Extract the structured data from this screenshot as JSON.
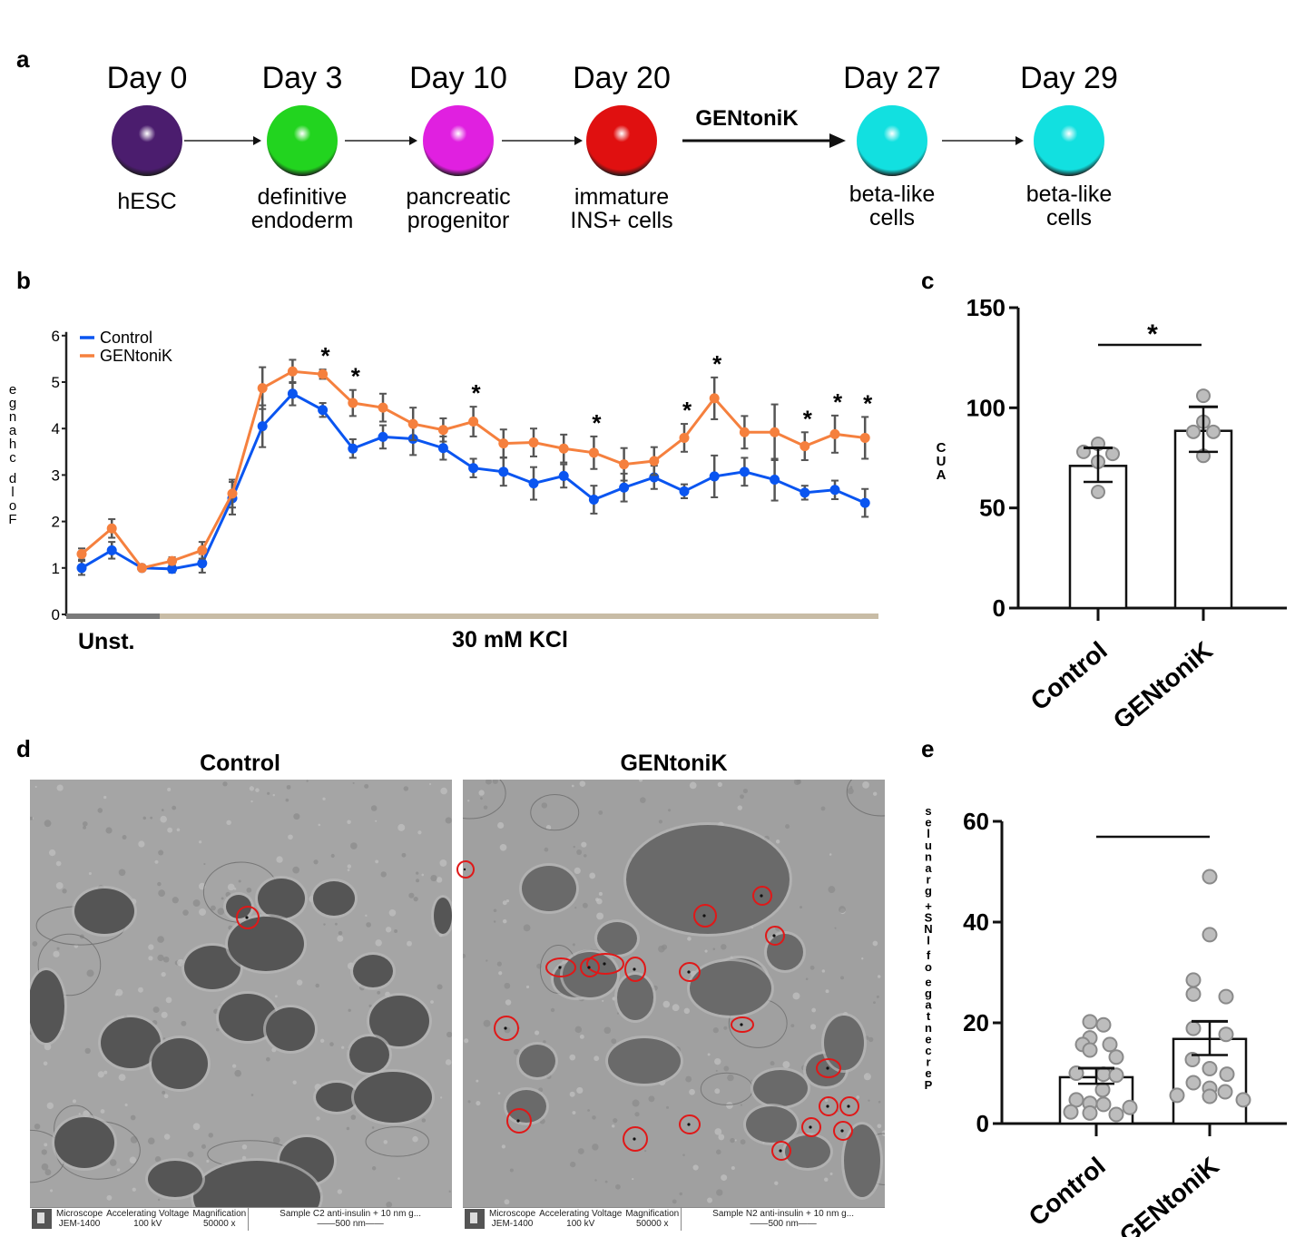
{
  "panel_a": {
    "letter": "a",
    "stages": [
      {
        "day": "Day 0",
        "label_lines": [
          "hESC"
        ],
        "color": "#4b1d6e"
      },
      {
        "day": "Day 3",
        "label_lines": [
          "definitive",
          "endoderm"
        ],
        "color": "#22d41f"
      },
      {
        "day": "Day 10",
        "label_lines": [
          "pancreatic",
          "progenitor"
        ],
        "color": "#e020e0"
      },
      {
        "day": "Day 20",
        "label_lines": [
          "immature",
          "INS+ cells"
        ],
        "color": "#e01010"
      },
      {
        "day": "Day 27",
        "label_lines": [
          "beta-like",
          "cells"
        ],
        "color": "#12e0e0"
      },
      {
        "day": "Day 29",
        "label_lines": [
          "beta-like",
          "cells"
        ],
        "color": "#12e0e0"
      }
    ],
    "treatment_label": "GENtoniK"
  },
  "chart_data": [
    {
      "panel": "b",
      "type": "line",
      "title": "",
      "ylabel": "Fold change",
      "ylabel_rendered": "egnahc dloF",
      "xlabel": "",
      "ylim": [
        0,
        6
      ],
      "yticks": [
        0,
        1,
        2,
        3,
        4,
        5,
        6
      ],
      "legend_position": "top-left",
      "x": [
        1,
        2,
        3,
        4,
        5,
        6,
        7,
        8,
        9,
        10,
        11,
        12,
        13,
        14,
        15,
        16,
        17,
        18,
        19,
        20,
        21,
        22,
        23,
        24,
        25,
        26,
        27
      ],
      "series": [
        {
          "name": "Control",
          "color": "#0a55f0",
          "values": [
            1.0,
            1.38,
            1.0,
            0.98,
            1.1,
            2.5,
            4.05,
            4.75,
            4.4,
            3.57,
            3.82,
            3.78,
            3.58,
            3.15,
            3.07,
            2.82,
            2.98,
            2.47,
            2.73,
            2.95,
            2.65,
            2.97,
            3.07,
            2.9,
            2.62,
            2.68,
            2.4
          ],
          "errors": [
            0.15,
            0.18,
            0.05,
            0.08,
            0.2,
            0.35,
            0.45,
            0.25,
            0.15,
            0.2,
            0.25,
            0.35,
            0.25,
            0.2,
            0.3,
            0.35,
            0.25,
            0.3,
            0.3,
            0.25,
            0.15,
            0.45,
            0.3,
            0.45,
            0.15,
            0.2,
            0.3
          ]
        },
        {
          "name": "GENtoniK",
          "color": "#f5803e",
          "values": [
            1.3,
            1.85,
            1.0,
            1.15,
            1.38,
            2.6,
            4.87,
            5.23,
            5.17,
            4.55,
            4.45,
            4.1,
            3.97,
            4.15,
            3.68,
            3.7,
            3.57,
            3.48,
            3.23,
            3.3,
            3.8,
            4.65,
            3.92,
            3.92,
            3.62,
            3.88,
            3.8
          ],
          "errors": [
            0.12,
            0.2,
            0.05,
            0.08,
            0.18,
            0.3,
            0.45,
            0.25,
            0.1,
            0.28,
            0.3,
            0.35,
            0.25,
            0.32,
            0.3,
            0.3,
            0.3,
            0.35,
            0.35,
            0.3,
            0.3,
            0.45,
            0.35,
            0.6,
            0.3,
            0.4,
            0.45
          ]
        }
      ],
      "significance_indices": [
        9,
        10,
        14,
        18,
        21,
        22,
        25,
        26,
        27
      ],
      "significance_mark": "*",
      "condition_bars": [
        {
          "label": "Unst.",
          "from_x": 1,
          "to_x": 3.5,
          "color": "#7a7a7a"
        },
        {
          "label": "30 mM KCl",
          "from_x": 3.5,
          "to_x": 27.5,
          "color": "#c8bca6"
        }
      ]
    },
    {
      "panel": "c",
      "type": "bar",
      "title": "",
      "ylabel": "AUC",
      "ylabel_rendered": "CUA",
      "categories": [
        "Control",
        "GENtoniK"
      ],
      "values": [
        71,
        88.5
      ],
      "error_upper": [
        80,
        100.5
      ],
      "error_lower": [
        63,
        78
      ],
      "points": [
        [
          82,
          78,
          77,
          73,
          58
        ],
        [
          106,
          93,
          88,
          88,
          76
        ]
      ],
      "ylim": [
        0,
        150
      ],
      "yticks": [
        0,
        50,
        100,
        150
      ],
      "significance": "*"
    },
    {
      "panel": "e",
      "type": "bar",
      "title": "",
      "ylabel": "Percentage of INS+ granules",
      "ylabel_rendered": "selunarg +SNI fo egatnecreP",
      "categories": [
        "Control",
        "GENtoniK"
      ],
      "values": [
        9.2,
        16.8
      ],
      "error_upper": [
        11.0,
        20.3
      ],
      "error_lower": [
        7.9,
        13.6
      ],
      "points": [
        [
          20.2,
          19.6,
          17.0,
          15.7,
          15.7,
          14.6,
          13.2,
          10.0,
          9.8,
          9.6,
          6.7,
          4.7,
          4.0,
          3.8,
          2.3,
          2.1,
          1.8,
          3.2
        ],
        [
          49.0,
          37.5,
          28.5,
          25.7,
          25.2,
          18.9,
          17.7,
          12.7,
          10.9,
          9.8,
          8.1,
          7.0,
          6.3,
          5.6,
          5.4,
          4.7
        ]
      ],
      "ylim": [
        0,
        60
      ],
      "yticks": [
        0,
        20,
        40,
        60
      ],
      "significance": ""
    }
  ],
  "panel_b": {
    "letter": "b",
    "legend": [
      "Control",
      "GENtoniK"
    ],
    "unst_label": "Unst.",
    "kcl_label": "30 mM KCl"
  },
  "panel_c": {
    "letter": "c",
    "ylabel": "CUA",
    "cat1": "Control",
    "cat2": "GENtoniK"
  },
  "panel_d": {
    "letter": "d",
    "images": [
      {
        "title": "Control",
        "footer": {
          "h1": "Microscope",
          "v1": "JEM-1400",
          "h2": "Accelerating Voltage",
          "v2": "100 kV",
          "h3": "Magnification",
          "v3": "50000 x",
          "h4": "Sample C2 anti-insulin + 10 nm g...",
          "v4": "——500 nm——"
        }
      },
      {
        "title": "GENtoniK",
        "footer": {
          "h1": "Microscope",
          "v1": "JEM-1400",
          "h2": "Accelerating Voltage",
          "v2": "100 kV",
          "h3": "Magnification",
          "v3": "50000 x",
          "h4": "Sample N2 anti-insulin + 10 nm g...",
          "v4": "——500 nm——"
        }
      }
    ],
    "annotation_color": "#e01818"
  },
  "panel_e": {
    "letter": "e",
    "ylabel": "Percentage of INS+ granules",
    "cat1": "Control",
    "cat2": "GENtoniK"
  }
}
